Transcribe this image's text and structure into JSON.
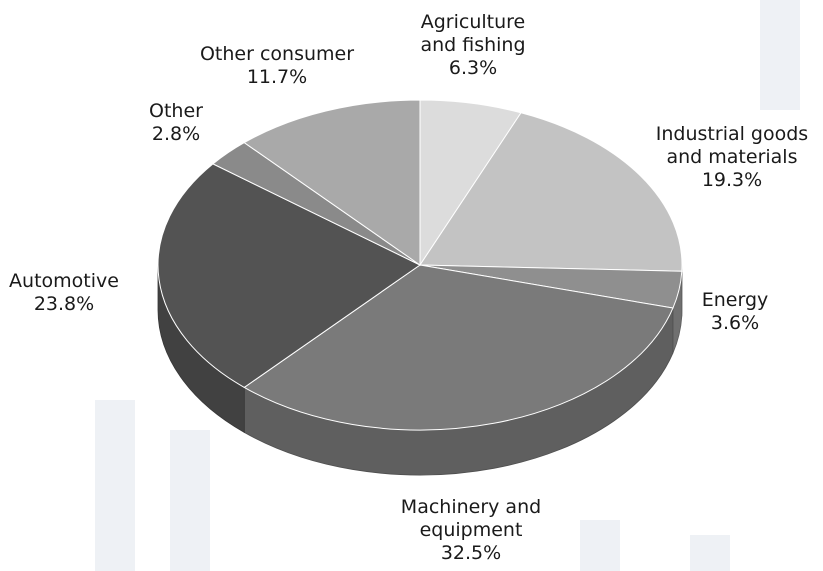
{
  "chart_data": {
    "type": "pie",
    "style": "3d-tilted",
    "legend": "none",
    "grid": false,
    "slices": [
      {
        "label_lines": [
          "Agriculture",
          "and fishing"
        ],
        "value": 6.3,
        "value_label": "6.3%",
        "color": "#dcdcdc"
      },
      {
        "label_lines": [
          "Industrial goods",
          "and materials"
        ],
        "value": 19.3,
        "value_label": "19.3%",
        "color": "#c3c3c3"
      },
      {
        "label_lines": [
          "Energy"
        ],
        "value": 3.6,
        "value_label": "3.6%",
        "color": "#8f8f8f"
      },
      {
        "label_lines": [
          "Machinery and",
          "equipment"
        ],
        "value": 32.5,
        "value_label": "32.5%",
        "color": "#7a7a7a"
      },
      {
        "label_lines": [
          "Automotive"
        ],
        "value": 23.8,
        "value_label": "23.8%",
        "color": "#535353"
      },
      {
        "label_lines": [
          "Other"
        ],
        "value": 2.8,
        "value_label": "2.8%",
        "color": "#8a8a8a"
      },
      {
        "label_lines": [
          "Other consumer"
        ],
        "value": 11.7,
        "value_label": "11.7%",
        "color": "#a9a9a9"
      }
    ]
  }
}
